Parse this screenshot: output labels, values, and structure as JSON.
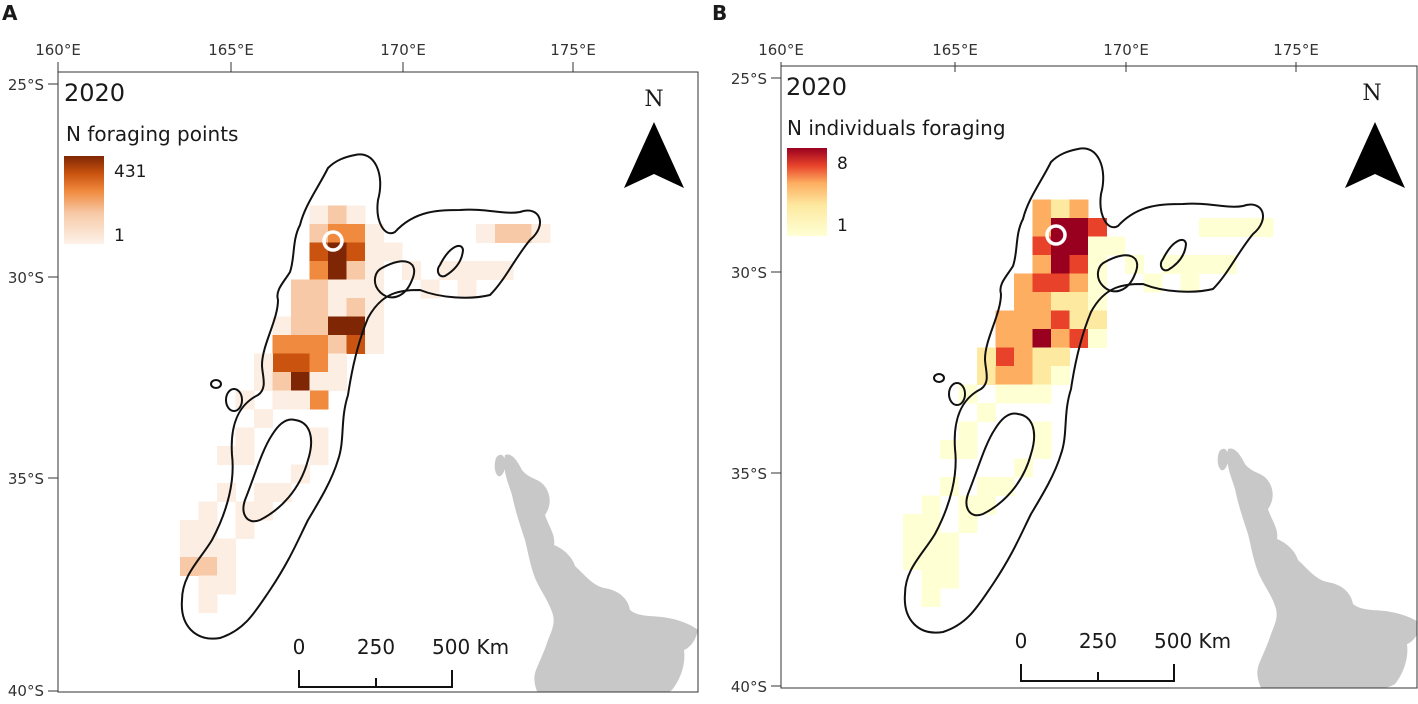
{
  "panels": [
    {
      "letter": "A",
      "year": "2020",
      "legend_title": "N foraging points",
      "legend_max": "431",
      "legend_min": "1",
      "ramp_colors": [
        "#fdf2ea",
        "#f7c9a6",
        "#f08a3e",
        "#c9530f",
        "#7f2704"
      ],
      "north_label": "N",
      "scale_labels": [
        "0",
        "250",
        "500 Km"
      ],
      "lon_ticks": [
        "160°E",
        "165°E",
        "170°E",
        "175°E"
      ],
      "lat_ticks": [
        "25°S",
        "30°S",
        "35°S",
        "40°S"
      ]
    },
    {
      "letter": "B",
      "year": "2020",
      "legend_title": "N individuals foraging",
      "legend_max": "8",
      "legend_min": "1",
      "ramp_colors": [
        "#ffffd4",
        "#fde9a0",
        "#fdae61",
        "#e8432a",
        "#99001f"
      ],
      "north_label": "N",
      "scale_labels": [
        "0",
        "250",
        "500 Km"
      ],
      "lon_ticks": [
        "160°E",
        "165°E",
        "170°E",
        "175°E"
      ],
      "lat_ticks": [
        "25°S",
        "30°S",
        "35°S",
        "40°S"
      ]
    }
  ],
  "colors": {
    "land": "#c8c8c8",
    "outline": "#111111",
    "colony_marker": "#ffffff"
  }
}
